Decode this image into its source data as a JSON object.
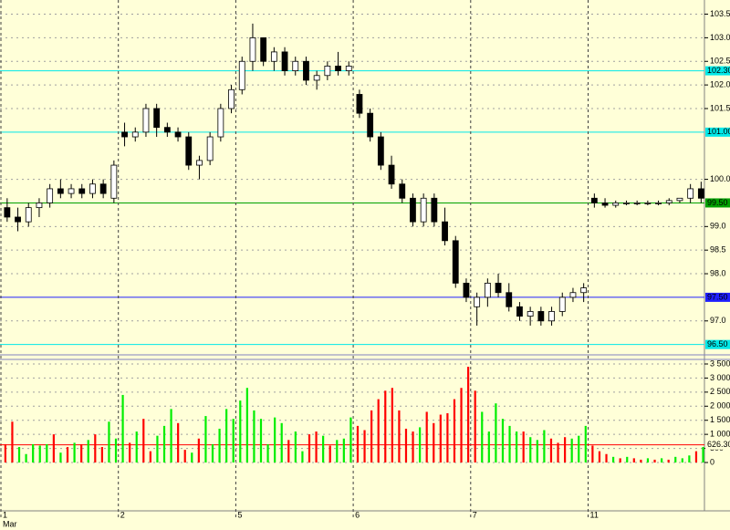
{
  "chart_data": [
    {
      "type": "candlestick",
      "month": "Mar",
      "categories": [
        "1",
        null,
        null,
        null,
        null,
        null,
        null,
        null,
        null,
        null,
        null,
        "2",
        null,
        null,
        null,
        null,
        null,
        null,
        null,
        null,
        null,
        null,
        "5",
        null,
        null,
        null,
        null,
        null,
        null,
        null,
        null,
        null,
        null,
        "6",
        null,
        null,
        null,
        null,
        null,
        null,
        null,
        null,
        null,
        null,
        "7",
        null,
        null,
        null,
        null,
        null,
        null,
        null,
        null,
        null,
        null,
        "11",
        null,
        null,
        null,
        null,
        null,
        null,
        null,
        null,
        null,
        null
      ],
      "open": [
        99.4,
        99.2,
        99.1,
        99.4,
        99.5,
        99.8,
        99.7,
        99.8,
        99.7,
        99.9,
        99.6,
        101.0,
        100.9,
        101.0,
        101.5,
        101.1,
        101.0,
        100.9,
        100.3,
        100.4,
        100.9,
        101.5,
        101.9,
        102.5,
        103.0,
        102.5,
        102.7,
        102.3,
        102.5,
        102.1,
        102.2,
        102.4,
        102.3,
        101.8,
        101.4,
        100.9,
        100.3,
        99.9,
        99.6,
        99.1,
        99.6,
        99.1,
        98.7,
        97.8,
        97.3,
        97.5,
        97.8,
        97.6,
        97.3,
        97.1,
        97.2,
        97.0,
        97.2,
        97.5,
        97.6,
        99.6,
        99.5,
        99.45,
        99.5,
        99.5,
        99.5,
        99.5,
        99.5,
        99.55,
        99.6,
        99.8
      ],
      "high": [
        99.6,
        99.4,
        99.5,
        99.6,
        99.9,
        100.0,
        99.9,
        99.9,
        100.0,
        100.0,
        100.4,
        101.2,
        101.1,
        101.6,
        101.6,
        101.2,
        101.1,
        101.0,
        100.5,
        101.0,
        101.6,
        102.0,
        102.6,
        103.3,
        103.0,
        102.8,
        102.8,
        102.6,
        102.6,
        102.3,
        102.5,
        102.7,
        102.5,
        101.9,
        101.5,
        101.0,
        100.5,
        100.0,
        99.7,
        99.7,
        99.7,
        99.4,
        98.8,
        97.9,
        97.6,
        97.9,
        98.0,
        97.8,
        97.4,
        97.3,
        97.3,
        97.3,
        97.6,
        97.7,
        97.8,
        99.7,
        99.6,
        99.55,
        99.55,
        99.55,
        99.55,
        99.55,
        99.6,
        99.6,
        99.9,
        99.95
      ],
      "low": [
        99.1,
        98.9,
        99.0,
        99.2,
        99.4,
        99.6,
        99.6,
        99.6,
        99.6,
        99.6,
        99.5,
        100.7,
        100.8,
        100.9,
        100.9,
        100.9,
        100.8,
        100.2,
        100.0,
        100.3,
        100.8,
        101.4,
        101.8,
        102.3,
        102.4,
        102.3,
        102.2,
        102.2,
        102.0,
        101.9,
        102.1,
        102.2,
        102.2,
        101.3,
        100.8,
        100.2,
        99.8,
        99.5,
        99.0,
        99.0,
        99.0,
        98.6,
        97.7,
        97.4,
        96.9,
        97.3,
        97.5,
        97.2,
        97.0,
        96.9,
        96.9,
        96.9,
        97.1,
        97.4,
        97.4,
        99.4,
        99.4,
        99.4,
        99.45,
        99.45,
        99.45,
        99.45,
        99.45,
        99.5,
        99.5,
        99.5
      ],
      "close": [
        99.2,
        99.1,
        99.4,
        99.5,
        99.8,
        99.7,
        99.8,
        99.7,
        99.9,
        99.7,
        100.3,
        100.9,
        101.0,
        101.5,
        101.1,
        101.0,
        100.9,
        100.3,
        100.4,
        100.9,
        101.5,
        101.9,
        102.5,
        103.0,
        102.5,
        102.7,
        102.3,
        102.5,
        102.1,
        102.2,
        102.4,
        102.3,
        102.4,
        101.4,
        100.9,
        100.3,
        99.9,
        99.6,
        99.1,
        99.6,
        99.1,
        98.7,
        97.8,
        97.5,
        97.5,
        97.8,
        97.6,
        97.3,
        97.1,
        97.2,
        97.0,
        97.2,
        97.5,
        97.6,
        97.7,
        99.5,
        99.45,
        99.5,
        99.5,
        99.5,
        99.5,
        99.5,
        99.55,
        99.6,
        99.8,
        99.6
      ],
      "up_color": "#ffffff",
      "down_color": "#000000",
      "ylim": [
        96.3,
        103.8
      ],
      "yticks": [
        {
          "value": 103.5,
          "label": "103.5"
        },
        {
          "value": 103.0,
          "label": "103.0"
        },
        {
          "value": 102.5,
          "label": "102.5"
        },
        {
          "value": 102.0,
          "label": "102.0"
        },
        {
          "value": 101.5,
          "label": "101.5"
        },
        {
          "value": 100.0,
          "label": "100.0"
        },
        {
          "value": 99.0,
          "label": "99.0"
        },
        {
          "value": 98.5,
          "label": "98.5"
        },
        {
          "value": 98.0,
          "label": "98.0"
        },
        {
          "value": 97.0,
          "label": "97.0"
        }
      ],
      "levels": [
        {
          "value": 102.3,
          "label": "102.30",
          "color": "#00e8e8"
        },
        {
          "value": 101.0,
          "label": "101.00",
          "color": "#00e8e8"
        },
        {
          "value": 99.5,
          "label": "99.50",
          "color": "#00a000"
        },
        {
          "value": 97.5,
          "label": "97.50",
          "color": "#2020ff"
        },
        {
          "value": 96.5,
          "label": "96.50",
          "color": "#00e8e8"
        }
      ],
      "grid": true
    },
    {
      "type": "bar",
      "values": [
        650,
        1450,
        550,
        300,
        650,
        600,
        650,
        1000,
        350,
        550,
        700,
        650,
        800,
        1000,
        550,
        1450,
        850,
        2400,
        700,
        1100,
        1550,
        400,
        950,
        1300,
        1900,
        1400,
        450,
        350,
        850,
        1650,
        650,
        1200,
        1900,
        1550,
        2200,
        2650,
        1850,
        1550,
        650,
        1600,
        1400,
        800,
        1100,
        400,
        1000,
        1100,
        950,
        600,
        800,
        850,
        1600,
        1300,
        1150,
        1850,
        2250,
        2550,
        2650,
        1850,
        1200,
        1100,
        1250,
        1800,
        1400,
        1700,
        1750,
        2250,
        2650,
        3400,
        2550,
        1800,
        1100,
        2100,
        1550,
        1300,
        1100,
        1100,
        900,
        800,
        1150,
        850,
        700,
        900,
        850,
        950,
        1300,
        600,
        400,
        300,
        200,
        150,
        200,
        150,
        100,
        150,
        100,
        150,
        100,
        200,
        150,
        250,
        400,
        550
      ],
      "colors": [
        "#ff0000",
        "#ff0000",
        "#00ee00",
        "#00ee00",
        "#00ee00",
        "#00ee00",
        "#00ee00",
        "#ff0000",
        "#00ee00",
        "#ff0000",
        "#00ee00",
        "#ff0000",
        "#00ee00",
        "#ff0000",
        "#ff0000",
        "#00ee00",
        "#00ee00",
        "#00ee00",
        "#ff0000",
        "#00ee00",
        "#ff0000",
        "#ff0000",
        "#00ee00",
        "#00ee00",
        "#00ee00",
        "#ff0000",
        "#ff0000",
        "#00ee00",
        "#ff0000",
        "#00ee00",
        "#00ee00",
        "#00ee00",
        "#00ee00",
        "#00ee00",
        "#00ee00",
        "#00ee00",
        "#00ee00",
        "#00ee00",
        "#00ee00",
        "#00ee00",
        "#00ee00",
        "#ff0000",
        "#00ee00",
        "#00ee00",
        "#ff0000",
        "#ff0000",
        "#00ee00",
        "#ff0000",
        "#00ee00",
        "#00ee00",
        "#00ee00",
        "#ff0000",
        "#ff0000",
        "#ff0000",
        "#ff0000",
        "#ff0000",
        "#ff0000",
        "#ff0000",
        "#ff0000",
        "#ff0000",
        "#00ee00",
        "#ff0000",
        "#ff0000",
        "#ff0000",
        "#ff0000",
        "#ff0000",
        "#ff0000",
        "#ff0000",
        "#ff0000",
        "#00ee00",
        "#00ee00",
        "#00ee00",
        "#00ee00",
        "#00ee00",
        "#00ee00",
        "#ff0000",
        "#00ee00",
        "#00ee00",
        "#00ee00",
        "#ff0000",
        "#ff0000",
        "#ff0000",
        "#00ee00",
        "#00ee00",
        "#00ee00",
        "#ff0000",
        "#ff0000",
        "#ff0000",
        "#00ee00",
        "#ff0000",
        "#00ee00",
        "#ff0000",
        "#ff0000",
        "#00ee00",
        "#ff0000",
        "#00ee00",
        "#ff0000",
        "#00ee00",
        "#00ee00",
        "#00ee00",
        "#ff0000",
        "#00ee00"
      ],
      "ylim": [
        0,
        3500
      ],
      "yticks": [
        {
          "value": 3500,
          "label": "3 500"
        },
        {
          "value": 3000,
          "label": "3 000"
        },
        {
          "value": 2500,
          "label": "2 500"
        },
        {
          "value": 2000,
          "label": "2 000"
        },
        {
          "value": 1500,
          "label": "1 500"
        },
        {
          "value": 1000,
          "label": "1 000"
        },
        500,
        0
      ],
      "levels": [
        {
          "value": 626.3,
          "label": "626.30",
          "color": "#ff0000"
        }
      ],
      "grid": true
    }
  ]
}
